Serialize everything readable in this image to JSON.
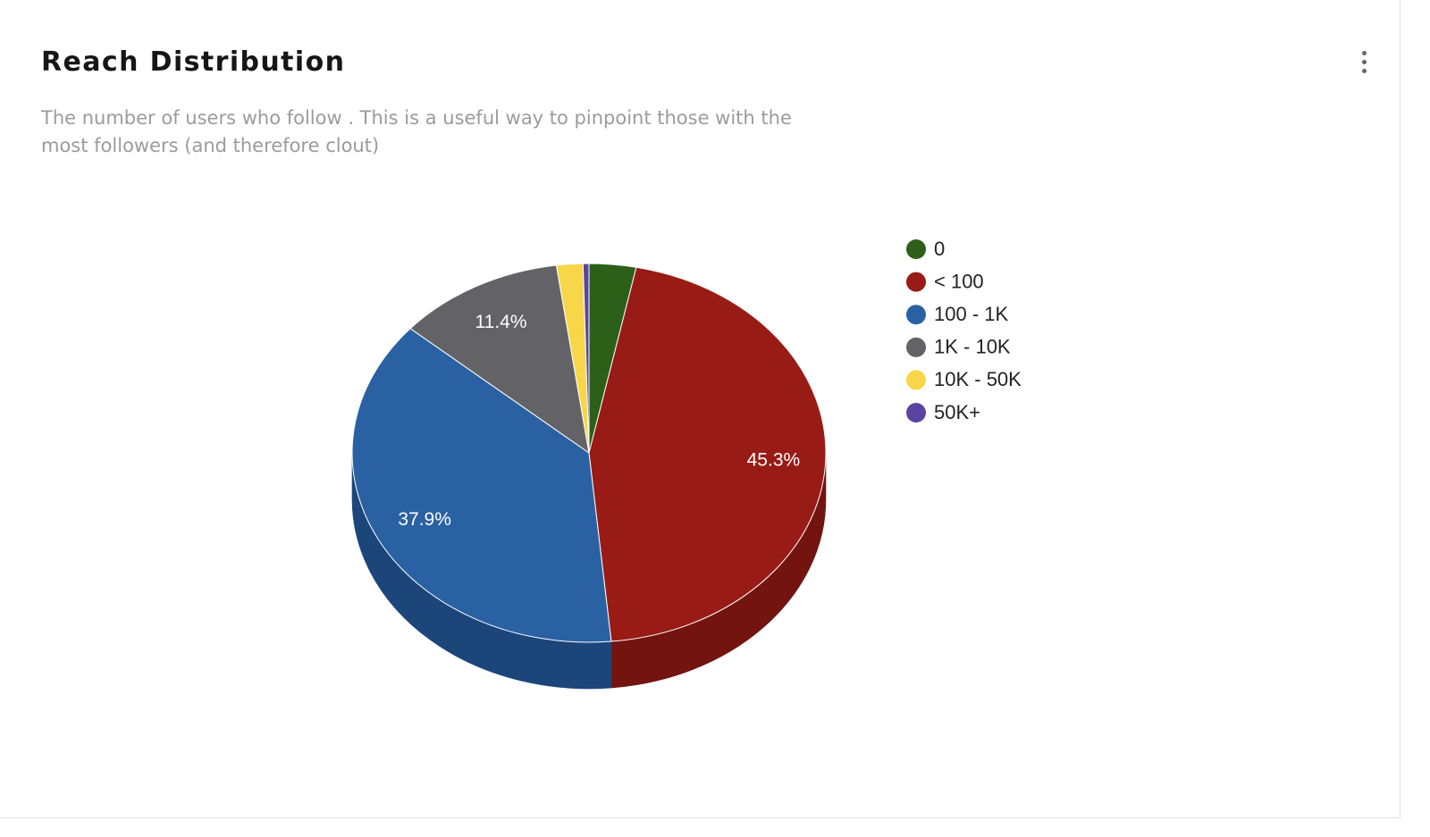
{
  "card": {
    "title": "Reach Distribution",
    "description": "The number of users who follow . This is a useful way to pinpoint those with the most followers (and therefore clout)",
    "menu_icon": "more-vertical-icon"
  },
  "chart_data": {
    "type": "pie",
    "style": "3d",
    "legend_position": "right",
    "categories": [
      "0",
      "< 100",
      "100 - 1K",
      "1K - 10K",
      "10K - 50K",
      "50K+"
    ],
    "values": [
      3.2,
      45.3,
      37.9,
      11.4,
      1.8,
      0.4
    ],
    "labels": [
      "",
      "45.3%",
      "37.9%",
      "11.4%",
      "",
      ""
    ],
    "colors": [
      "#2c5f18",
      "#991b16",
      "#2a61a3",
      "#636367",
      "#f7d64a",
      "#5b44a1"
    ],
    "side_colors": [
      "#1d4210",
      "#731411",
      "#1c467a",
      "#47474b",
      "#c9ab2f",
      "#3f2f76"
    ]
  }
}
